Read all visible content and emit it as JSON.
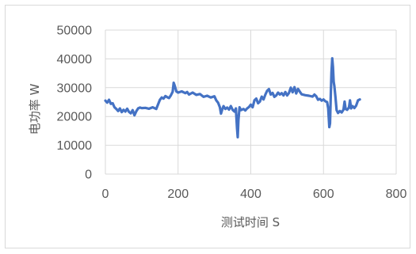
{
  "chart_data": {
    "type": "line",
    "title": "",
    "xlabel": "测试时间 S",
    "ylabel": "电功率 W",
    "xlim": [
      0,
      800
    ],
    "ylim": [
      0,
      50000
    ],
    "xticks": [
      0,
      200,
      400,
      600,
      800
    ],
    "yticks": [
      0,
      10000,
      20000,
      30000,
      40000,
      50000
    ],
    "xtick_labels": [
      "0",
      "200",
      "400",
      "600",
      "800"
    ],
    "ytick_labels": [
      "0",
      "10000",
      "20000",
      "30000",
      "40000",
      "50000"
    ],
    "grid": true,
    "legend": "none",
    "series_color": "#4472c4",
    "series": [
      {
        "points": [
          [
            0,
            25500
          ],
          [
            5,
            24800
          ],
          [
            10,
            25800
          ],
          [
            15,
            24400
          ],
          [
            20,
            24600
          ],
          [
            25,
            23200
          ],
          [
            30,
            22600
          ],
          [
            35,
            21900
          ],
          [
            40,
            22800
          ],
          [
            45,
            21500
          ],
          [
            50,
            22300
          ],
          [
            55,
            21700
          ],
          [
            60,
            22700
          ],
          [
            65,
            21600
          ],
          [
            70,
            21100
          ],
          [
            75,
            22200
          ],
          [
            80,
            20400
          ],
          [
            85,
            21800
          ],
          [
            90,
            22800
          ],
          [
            95,
            23100
          ],
          [
            100,
            22900
          ],
          [
            110,
            23000
          ],
          [
            120,
            22700
          ],
          [
            130,
            23200
          ],
          [
            140,
            22600
          ],
          [
            145,
            24200
          ],
          [
            150,
            25800
          ],
          [
            155,
            26600
          ],
          [
            160,
            26200
          ],
          [
            165,
            27100
          ],
          [
            170,
            26700
          ],
          [
            175,
            26400
          ],
          [
            180,
            27300
          ],
          [
            185,
            28600
          ],
          [
            188,
            31700
          ],
          [
            191,
            30600
          ],
          [
            195,
            28700
          ],
          [
            200,
            28300
          ],
          [
            210,
            28700
          ],
          [
            220,
            28100
          ],
          [
            225,
            28500
          ],
          [
            230,
            27600
          ],
          [
            240,
            28300
          ],
          [
            250,
            27500
          ],
          [
            260,
            27800
          ],
          [
            270,
            26800
          ],
          [
            280,
            27200
          ],
          [
            290,
            26600
          ],
          [
            300,
            27000
          ],
          [
            305,
            25600
          ],
          [
            310,
            24800
          ],
          [
            315,
            23200
          ],
          [
            318,
            21000
          ],
          [
            321,
            22300
          ],
          [
            325,
            23600
          ],
          [
            330,
            22600
          ],
          [
            335,
            23100
          ],
          [
            340,
            22400
          ],
          [
            345,
            23600
          ],
          [
            350,
            22300
          ],
          [
            355,
            21700
          ],
          [
            359,
            22800
          ],
          [
            362,
            16000
          ],
          [
            364,
            12800
          ],
          [
            366,
            18800
          ],
          [
            369,
            23200
          ],
          [
            373,
            22200
          ],
          [
            380,
            22600
          ],
          [
            385,
            22100
          ],
          [
            390,
            22800
          ],
          [
            395,
            23300
          ],
          [
            400,
            24100
          ],
          [
            405,
            23200
          ],
          [
            410,
            25600
          ],
          [
            415,
            26200
          ],
          [
            420,
            24600
          ],
          [
            425,
            25200
          ],
          [
            430,
            26900
          ],
          [
            435,
            25900
          ],
          [
            440,
            27600
          ],
          [
            445,
            28900
          ],
          [
            450,
            29500
          ],
          [
            455,
            27600
          ],
          [
            460,
            28200
          ],
          [
            465,
            26800
          ],
          [
            470,
            27300
          ],
          [
            475,
            28300
          ],
          [
            480,
            27600
          ],
          [
            485,
            28100
          ],
          [
            490,
            27300
          ],
          [
            495,
            28500
          ],
          [
            500,
            27300
          ],
          [
            505,
            28200
          ],
          [
            510,
            30000
          ],
          [
            515,
            28400
          ],
          [
            520,
            30200
          ],
          [
            525,
            28000
          ],
          [
            530,
            29600
          ],
          [
            535,
            28600
          ],
          [
            540,
            27700
          ],
          [
            550,
            27400
          ],
          [
            560,
            27200
          ],
          [
            570,
            26900
          ],
          [
            575,
            27600
          ],
          [
            580,
            27000
          ],
          [
            585,
            25800
          ],
          [
            590,
            26100
          ],
          [
            595,
            25500
          ],
          [
            600,
            25900
          ],
          [
            605,
            25300
          ],
          [
            610,
            25000
          ],
          [
            613,
            22800
          ],
          [
            616,
            16300
          ],
          [
            618,
            17600
          ],
          [
            620,
            26800
          ],
          [
            622,
            35200
          ],
          [
            624,
            40200
          ],
          [
            626,
            37200
          ],
          [
            628,
            32100
          ],
          [
            630,
            30500
          ],
          [
            633,
            26600
          ],
          [
            636,
            22200
          ],
          [
            640,
            21200
          ],
          [
            645,
            21900
          ],
          [
            650,
            21400
          ],
          [
            655,
            22400
          ],
          [
            658,
            25200
          ],
          [
            661,
            22600
          ],
          [
            665,
            22300
          ],
          [
            670,
            23100
          ],
          [
            673,
            25600
          ],
          [
            676,
            22800
          ],
          [
            680,
            23600
          ],
          [
            685,
            22900
          ],
          [
            690,
            23800
          ],
          [
            695,
            25600
          ],
          [
            700,
            25900
          ]
        ]
      }
    ]
  }
}
